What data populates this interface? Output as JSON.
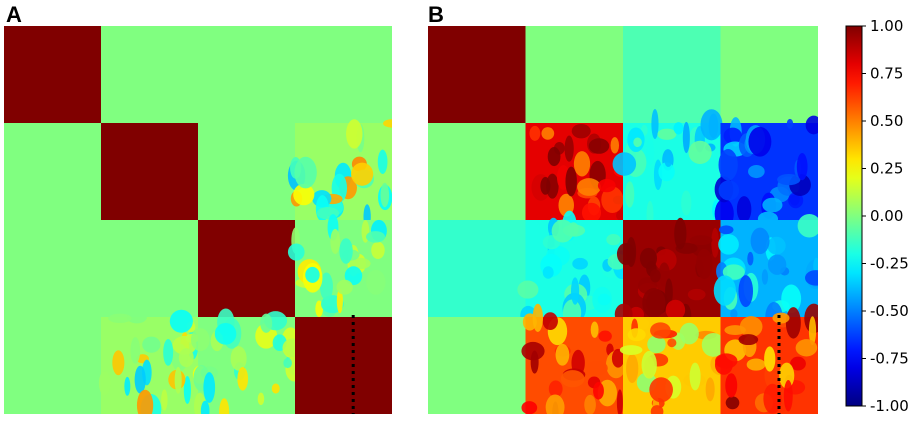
{
  "panels": [
    {
      "label": "A",
      "chart_data": {
        "type": "heatmap",
        "rows": 4,
        "cols": 4,
        "values": [
          [
            1.0,
            0.0,
            0.0,
            0.0
          ],
          [
            0.0,
            1.0,
            0.0,
            0.05
          ],
          [
            0.0,
            0.0,
            1.0,
            0.0
          ],
          [
            0.0,
            0.05,
            0.0,
            1.0
          ]
        ],
        "texture": [
          [
            0,
            0,
            0,
            0
          ],
          [
            0,
            0,
            0,
            0.2
          ],
          [
            0,
            0,
            0,
            0.14
          ],
          [
            0,
            0.2,
            0.14,
            0
          ]
        ],
        "dotted_line_col": 3.6
      }
    },
    {
      "label": "B",
      "chart_data": {
        "type": "heatmap",
        "rows": 4,
        "cols": 4,
        "values": [
          [
            1.0,
            0.0,
            -0.1,
            0.0
          ],
          [
            0.0,
            0.8,
            -0.2,
            -0.65
          ],
          [
            -0.15,
            -0.2,
            0.95,
            -0.4
          ],
          [
            0.0,
            0.6,
            0.35,
            0.65
          ]
        ],
        "texture": [
          [
            0,
            0,
            0,
            0
          ],
          [
            0,
            0.16,
            0.1,
            0.14
          ],
          [
            0,
            0.08,
            0.06,
            0.14
          ],
          [
            0,
            0.16,
            0.16,
            0.16
          ]
        ],
        "dotted_line_col": 3.6
      }
    }
  ],
  "colorbar": {
    "min": -1.0,
    "max": 1.0,
    "ticks": [
      "1.00",
      "0.75",
      "0.50",
      "0.25",
      "0.00",
      "-0.25",
      "-0.50",
      "-0.75",
      "-1.00"
    ],
    "tick_values": [
      1.0,
      0.75,
      0.5,
      0.25,
      0.0,
      -0.25,
      -0.5,
      -0.75,
      -1.0
    ],
    "colormap": "jet"
  }
}
